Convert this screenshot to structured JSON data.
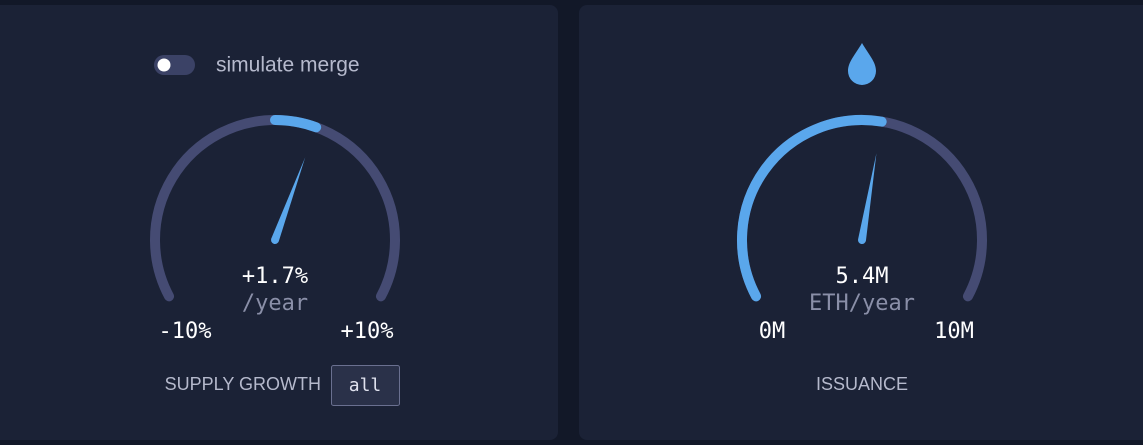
{
  "toggle": {
    "label": "simulate merge",
    "on": false
  },
  "gauges": [
    {
      "value": 1.7,
      "value_label": "+1.7%",
      "unit": "/year",
      "min": -10,
      "min_label": "-10%",
      "max": 10,
      "max_label": "+10%",
      "title": "SUPPLY GROWTH",
      "button": "all"
    },
    {
      "value": 5.4,
      "value_label": "5.4M",
      "unit": "ETH/year",
      "min": 0,
      "min_label": "0M",
      "max": 10,
      "max_label": "10M",
      "title": "ISSUANCE"
    }
  ]
}
